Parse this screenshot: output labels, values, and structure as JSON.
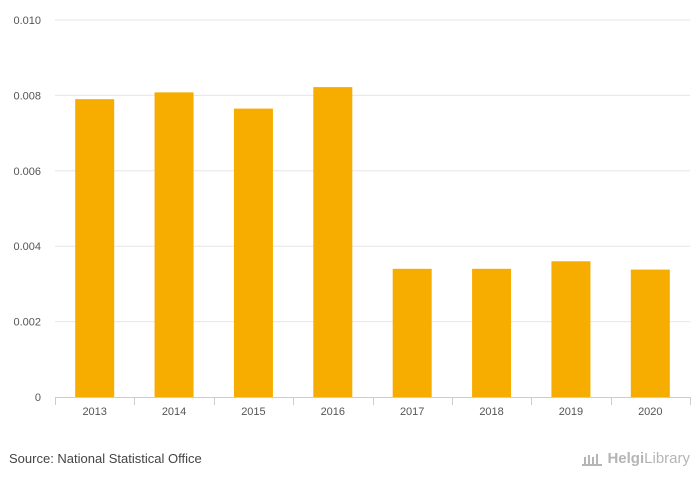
{
  "chart_data": {
    "type": "bar",
    "categories": [
      "2013",
      "2014",
      "2015",
      "2016",
      "2017",
      "2018",
      "2019",
      "2020"
    ],
    "values": [
      0.0079,
      0.00808,
      0.00765,
      0.00822,
      0.0034,
      0.0034,
      0.0036,
      0.00338
    ],
    "yticks": [
      "0",
      "0.002",
      "0.004",
      "0.006",
      "0.008",
      "0.010"
    ],
    "ylim": [
      0,
      0.01
    ],
    "bar_color": "#f7ad00",
    "grid": true
  },
  "footer": {
    "source": "Source: National Statistical Office",
    "brand_bold": "Helgi",
    "brand_light": "Library"
  },
  "icons": {
    "brand_logo": "library-columns-icon"
  }
}
